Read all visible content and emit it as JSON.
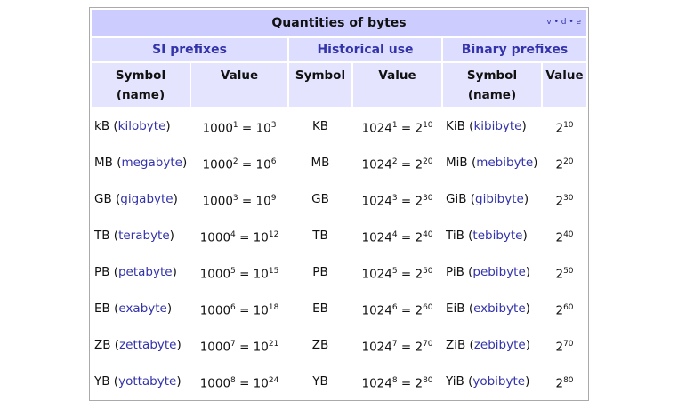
{
  "title": "Quantities of bytes",
  "navbar": "v • d • e",
  "groups": [
    "SI prefixes",
    "Historical use",
    "Binary prefixes"
  ],
  "columns": [
    "Symbol (name)",
    "Value",
    "Symbol",
    "Value",
    "Symbol (name)",
    "Value"
  ],
  "rows": [
    [
      [
        {
          "t": "kB ("
        },
        {
          "a": "kilobyte"
        },
        {
          "t": ")"
        }
      ],
      [
        {
          "t": "1000"
        },
        {
          "s": "1"
        },
        {
          "t": " = 10"
        },
        {
          "s": "3"
        }
      ],
      [
        {
          "t": "KB"
        }
      ],
      [
        {
          "t": "1024"
        },
        {
          "s": "1"
        },
        {
          "t": " = 2"
        },
        {
          "s": "10"
        }
      ],
      [
        {
          "t": "KiB ("
        },
        {
          "a": "kibibyte"
        },
        {
          "t": ")"
        }
      ],
      [
        {
          "t": "2"
        },
        {
          "s": "10"
        }
      ]
    ],
    [
      [
        {
          "t": "MB ("
        },
        {
          "a": "megabyte"
        },
        {
          "t": ")"
        }
      ],
      [
        {
          "t": "1000"
        },
        {
          "s": "2"
        },
        {
          "t": " = 10"
        },
        {
          "s": "6"
        }
      ],
      [
        {
          "t": "MB"
        }
      ],
      [
        {
          "t": "1024"
        },
        {
          "s": "2"
        },
        {
          "t": " = 2"
        },
        {
          "s": "20"
        }
      ],
      [
        {
          "t": "MiB ("
        },
        {
          "a": "mebibyte"
        },
        {
          "t": ")"
        }
      ],
      [
        {
          "t": "2"
        },
        {
          "s": "20"
        }
      ]
    ],
    [
      [
        {
          "t": "GB ("
        },
        {
          "a": "gigabyte"
        },
        {
          "t": ")"
        }
      ],
      [
        {
          "t": "1000"
        },
        {
          "s": "3"
        },
        {
          "t": " = 10"
        },
        {
          "s": "9"
        }
      ],
      [
        {
          "t": "GB"
        }
      ],
      [
        {
          "t": "1024"
        },
        {
          "s": "3"
        },
        {
          "t": " = 2"
        },
        {
          "s": "30"
        }
      ],
      [
        {
          "t": "GiB ("
        },
        {
          "a": "gibibyte"
        },
        {
          "t": ")"
        }
      ],
      [
        {
          "t": "2"
        },
        {
          "s": "30"
        }
      ]
    ],
    [
      [
        {
          "t": "TB ("
        },
        {
          "a": "terabyte"
        },
        {
          "t": ")"
        }
      ],
      [
        {
          "t": "1000"
        },
        {
          "s": "4"
        },
        {
          "t": " = 10"
        },
        {
          "s": "12"
        }
      ],
      [
        {
          "t": "TB"
        }
      ],
      [
        {
          "t": "1024"
        },
        {
          "s": "4"
        },
        {
          "t": " = 2"
        },
        {
          "s": "40"
        }
      ],
      [
        {
          "t": "TiB ("
        },
        {
          "a": "tebibyte"
        },
        {
          "t": ")"
        }
      ],
      [
        {
          "t": "2"
        },
        {
          "s": "40"
        }
      ]
    ],
    [
      [
        {
          "t": "PB ("
        },
        {
          "a": "petabyte"
        },
        {
          "t": ")"
        }
      ],
      [
        {
          "t": "1000"
        },
        {
          "s": "5"
        },
        {
          "t": " = 10"
        },
        {
          "s": "15"
        }
      ],
      [
        {
          "t": "PB"
        }
      ],
      [
        {
          "t": "1024"
        },
        {
          "s": "5"
        },
        {
          "t": " = 2"
        },
        {
          "s": "50"
        }
      ],
      [
        {
          "t": "PiB ("
        },
        {
          "a": "pebibyte"
        },
        {
          "t": ")"
        }
      ],
      [
        {
          "t": "2"
        },
        {
          "s": "50"
        }
      ]
    ],
    [
      [
        {
          "t": "EB ("
        },
        {
          "a": "exabyte"
        },
        {
          "t": ")"
        }
      ],
      [
        {
          "t": "1000"
        },
        {
          "s": "6"
        },
        {
          "t": " = 10"
        },
        {
          "s": "18"
        }
      ],
      [
        {
          "t": "EB"
        }
      ],
      [
        {
          "t": "1024"
        },
        {
          "s": "6"
        },
        {
          "t": " = 2"
        },
        {
          "s": "60"
        }
      ],
      [
        {
          "t": "EiB ("
        },
        {
          "a": "exbibyte"
        },
        {
          "t": ")"
        }
      ],
      [
        {
          "t": "2"
        },
        {
          "s": "60"
        }
      ]
    ],
    [
      [
        {
          "t": "ZB ("
        },
        {
          "a": "zettabyte"
        },
        {
          "t": ")"
        }
      ],
      [
        {
          "t": "1000"
        },
        {
          "s": "7"
        },
        {
          "t": " = 10"
        },
        {
          "s": "21"
        }
      ],
      [
        {
          "t": "ZB"
        }
      ],
      [
        {
          "t": "1024"
        },
        {
          "s": "7"
        },
        {
          "t": " = 2"
        },
        {
          "s": "70"
        }
      ],
      [
        {
          "t": "ZiB ("
        },
        {
          "a": "zebibyte"
        },
        {
          "t": ")"
        }
      ],
      [
        {
          "t": "2"
        },
        {
          "s": "70"
        }
      ]
    ],
    [
      [
        {
          "t": "YB ("
        },
        {
          "a": "yottabyte"
        },
        {
          "t": ")"
        }
      ],
      [
        {
          "t": "1000"
        },
        {
          "s": "8"
        },
        {
          "t": " = 10"
        },
        {
          "s": "24"
        }
      ],
      [
        {
          "t": "YB"
        }
      ],
      [
        {
          "t": "1024"
        },
        {
          "s": "8"
        },
        {
          "t": " = 2"
        },
        {
          "s": "80"
        }
      ],
      [
        {
          "t": "YiB ("
        },
        {
          "a": "yobibyte"
        },
        {
          "t": ")"
        }
      ],
      [
        {
          "t": "2"
        },
        {
          "s": "80"
        }
      ]
    ]
  ]
}
